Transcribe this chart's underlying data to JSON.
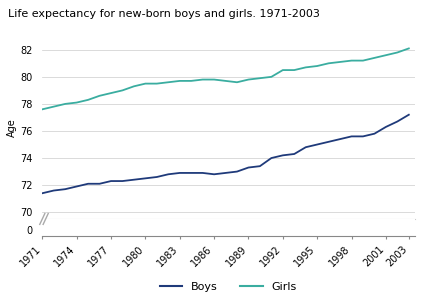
{
  "title": "Life expectancy for new-born boys and girls. 1971-2003",
  "ylabel": "Age",
  "years": [
    1971,
    1972,
    1973,
    1974,
    1975,
    1976,
    1977,
    1978,
    1979,
    1980,
    1981,
    1982,
    1983,
    1984,
    1985,
    1986,
    1987,
    1988,
    1989,
    1990,
    1991,
    1992,
    1993,
    1994,
    1995,
    1996,
    1997,
    1998,
    1999,
    2000,
    2001,
    2002,
    2003
  ],
  "boys": [
    71.4,
    71.6,
    71.7,
    71.9,
    72.1,
    72.1,
    72.3,
    72.3,
    72.4,
    72.5,
    72.6,
    72.8,
    72.9,
    72.9,
    72.9,
    72.8,
    72.9,
    73.0,
    73.3,
    73.4,
    74.0,
    74.2,
    74.3,
    74.8,
    75.0,
    75.2,
    75.4,
    75.6,
    75.6,
    75.8,
    76.3,
    76.7,
    77.2
  ],
  "girls": [
    77.6,
    77.8,
    78.0,
    78.1,
    78.3,
    78.6,
    78.8,
    79.0,
    79.3,
    79.5,
    79.5,
    79.6,
    79.7,
    79.7,
    79.8,
    79.8,
    79.7,
    79.6,
    79.8,
    79.9,
    80.0,
    80.5,
    80.5,
    80.7,
    80.8,
    81.0,
    81.1,
    81.2,
    81.2,
    81.4,
    81.6,
    81.8,
    82.1
  ],
  "boys_color": "#1f3a7a",
  "girls_color": "#3aada0",
  "background_color": "#ffffff",
  "grid_color": "#cccccc",
  "yticks_top": [
    70,
    72,
    74,
    76,
    78,
    80,
    82
  ],
  "ytick_labels_top": [
    "70",
    "72",
    "74",
    "76",
    "78",
    "80",
    "82"
  ],
  "yticks_bottom": [
    0
  ],
  "ytick_labels_bottom": [
    "0"
  ],
  "xtick_years": [
    1971,
    1974,
    1977,
    1980,
    1983,
    1986,
    1989,
    1992,
    1995,
    1998,
    2001,
    2003
  ],
  "ylim_top_min": 69.5,
  "ylim_top_max": 83.0,
  "ylim_bottom_min": -0.5,
  "ylim_bottom_max": 1.0,
  "legend_boys": "Boys",
  "legend_girls": "Girls",
  "break_color": "#aaaaaa"
}
